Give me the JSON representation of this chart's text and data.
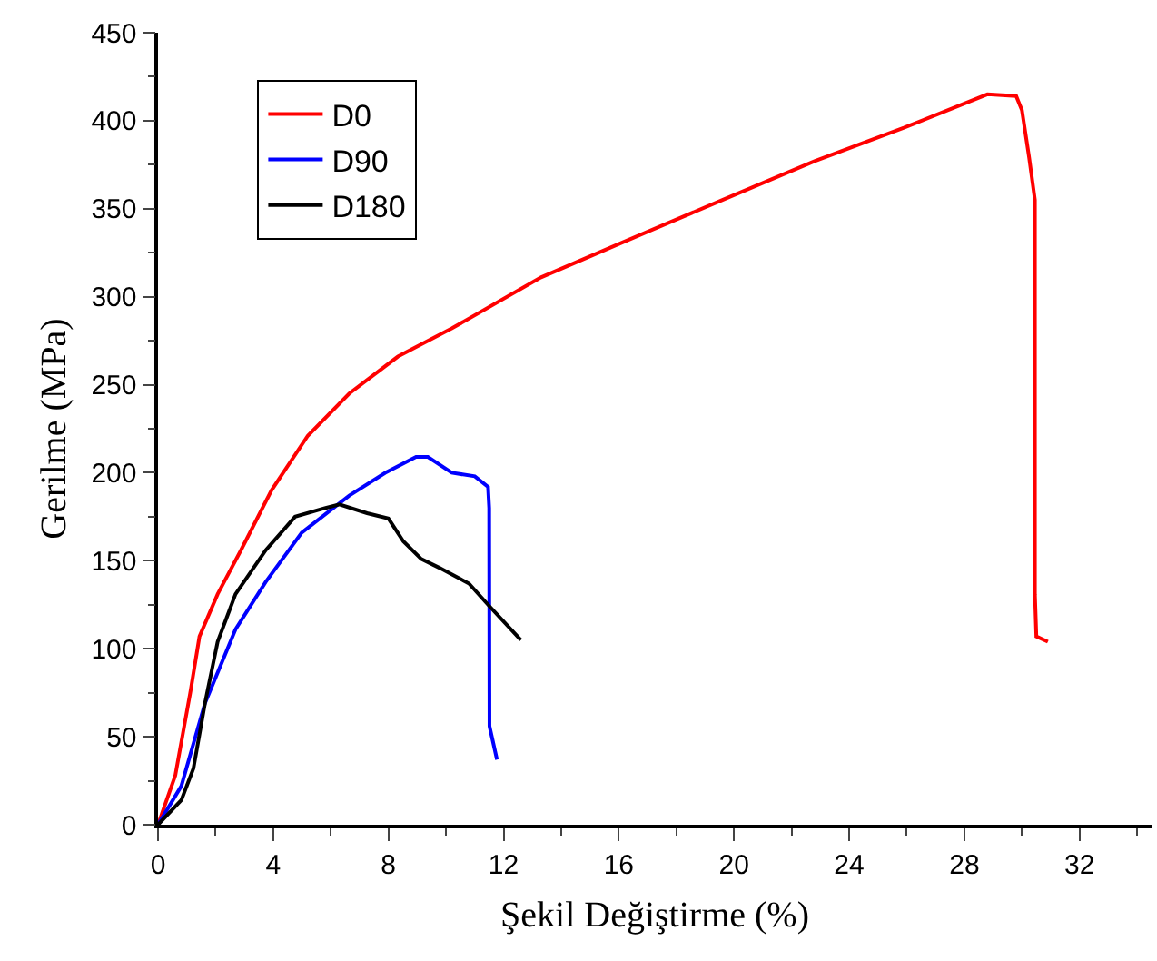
{
  "chart_data": {
    "type": "line",
    "xlabel": "Şekil Değiştirme (%)",
    "ylabel": "Gerilme (MPa)",
    "xlim": [
      0,
      34.5
    ],
    "xticks": [
      0,
      4,
      8,
      12,
      16,
      20,
      24,
      28,
      32
    ],
    "ylim": [
      0,
      450
    ],
    "yticks": [
      0,
      50,
      100,
      150,
      200,
      250,
      300,
      350,
      400,
      450
    ],
    "grid": false,
    "legend": "top left",
    "marker": "none",
    "line_style": "solid",
    "series": [
      {
        "name": "D0",
        "color": "#ff0000",
        "x": [
          0,
          0.6,
          1.13,
          1.44,
          2.07,
          2.88,
          3.94,
          5.2,
          6.64,
          8.33,
          10.2,
          13.3,
          16,
          19.6,
          22.8,
          25.9,
          28.8,
          29.8,
          30.0,
          30.25,
          30.45,
          30.45,
          30.5,
          30.9
        ],
        "values": [
          0,
          28,
          76,
          107,
          131,
          156,
          190,
          221,
          245,
          266,
          282,
          311,
          330,
          355,
          377,
          396,
          415,
          414,
          406,
          379,
          355,
          131,
          107,
          104
        ]
      },
      {
        "name": "D90",
        "color": "#0000ff",
        "x": [
          0,
          0.81,
          1.63,
          2.69,
          3.74,
          4.99,
          6.64,
          7.89,
          8.96,
          9.37,
          10.2,
          11.0,
          11.46,
          11.5,
          11.51,
          11.77
        ],
        "values": [
          0,
          22,
          69,
          111,
          138,
          166,
          187,
          200,
          209,
          209,
          200,
          198,
          192,
          180,
          56,
          37
        ]
      },
      {
        "name": "D180",
        "color": "#000000",
        "x": [
          0,
          0.81,
          1.23,
          1.63,
          2.07,
          2.69,
          3.74,
          4.76,
          5.82,
          6.3,
          7.26,
          8.0,
          8.52,
          9.14,
          9.77,
          10.8,
          11.46,
          12.6
        ],
        "values": [
          0,
          14,
          32,
          69,
          104,
          131,
          156,
          175,
          180,
          182,
          177,
          174,
          161,
          151,
          146,
          137,
          125,
          105
        ]
      }
    ]
  }
}
